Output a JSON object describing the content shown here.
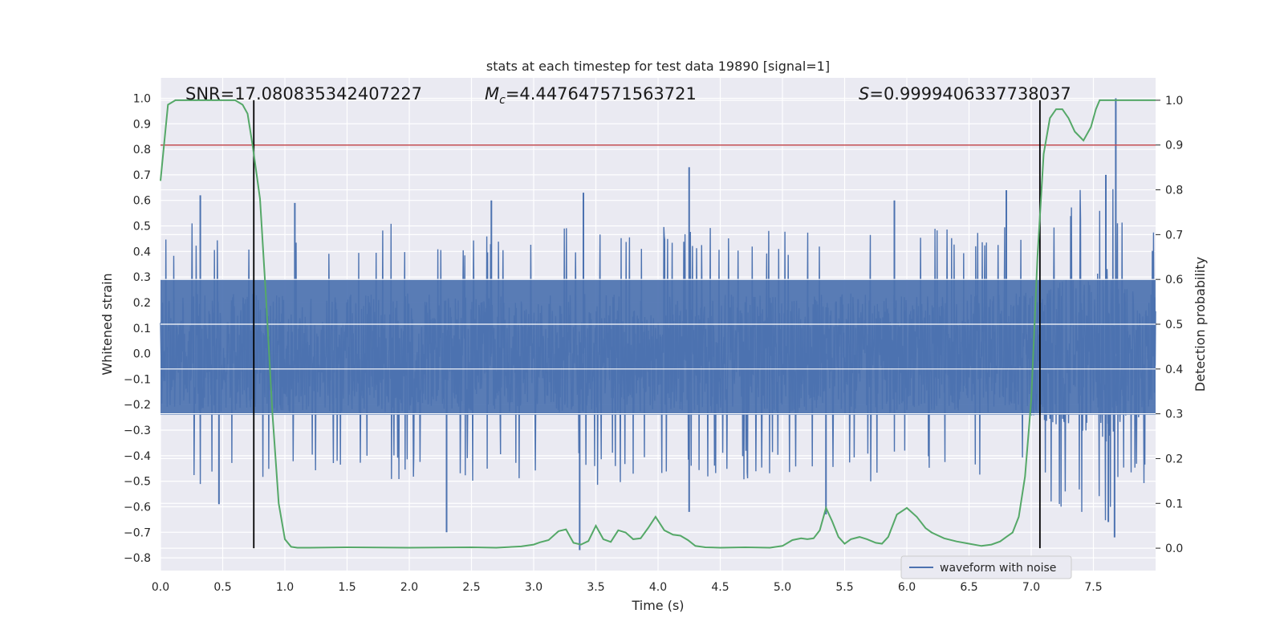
{
  "chart_data": {
    "type": "line",
    "title": "stats at each timestep for test data 19890 [signal=1]",
    "xlabel": "Time (s)",
    "ylabel_left": "Whitened strain",
    "ylabel_right": "Detection probability",
    "xlim": [
      0.0,
      8.0
    ],
    "ylim_left": [
      -0.85,
      1.08
    ],
    "ylim_right": [
      -0.05,
      1.05
    ],
    "x_ticks": [
      0.0,
      0.5,
      1.0,
      1.5,
      2.0,
      2.5,
      3.0,
      3.5,
      4.0,
      4.5,
      5.0,
      5.5,
      6.0,
      6.5,
      7.0,
      7.5
    ],
    "x_tick_labels": [
      "0.0",
      "0.5",
      "1.0",
      "1.5",
      "2.0",
      "2.5",
      "3.0",
      "3.5",
      "4.0",
      "4.5",
      "5.0",
      "5.5",
      "6.0",
      "6.5",
      "7.0",
      "7.5"
    ],
    "y_ticks_left": [
      1.0,
      0.9,
      0.8,
      0.7,
      0.6,
      0.5,
      0.4,
      0.3,
      0.2,
      0.1,
      0.0,
      -0.1,
      -0.2,
      -0.3,
      -0.4,
      -0.5,
      -0.6,
      -0.7,
      -0.8
    ],
    "y_tick_labels_left": [
      "1.0",
      "0.9",
      "0.8",
      "0.7",
      "0.6",
      "0.5",
      "0.4",
      "0.3",
      "0.2",
      "0.1",
      "0.0",
      "−0.1",
      "−0.2",
      "−0.3",
      "−0.4",
      "−0.5",
      "−0.6",
      "−0.7",
      "−0.8"
    ],
    "y_ticks_right": [
      1.0,
      0.9,
      0.8,
      0.7,
      0.6,
      0.5,
      0.4,
      0.3,
      0.2,
      0.1,
      0.0
    ],
    "y_tick_labels_right": [
      "1.0",
      "0.9",
      "0.8",
      "0.7",
      "0.6",
      "0.5",
      "0.4",
      "0.3",
      "0.2",
      "0.1",
      "0.0"
    ],
    "grid": true,
    "legend": {
      "position": "lower-right",
      "entries": [
        "waveform with noise"
      ]
    },
    "annotations": {
      "snr": "SNR=17.080835342407227",
      "mc_symbol": "M",
      "mc_sub": "c",
      "mc_value": "=4.447647571563721",
      "s_symbol": "S",
      "s_value": "=0.9999406337738037"
    },
    "threshold_line": {
      "axis": "right",
      "y": 0.9,
      "color": "#c44e52"
    },
    "vertical_lines": {
      "x": [
        0.75,
        7.07
      ],
      "color": "#000000"
    },
    "series": [
      {
        "name": "waveform with noise",
        "axis": "left",
        "color": "#4c72b0",
        "description_envelope": {
          "x": [
            0.0,
            0.5,
            1.0,
            1.5,
            2.0,
            2.5,
            3.0,
            3.5,
            4.0,
            4.5,
            5.0,
            5.5,
            6.0,
            6.5,
            7.0,
            7.5,
            7.6,
            7.7,
            8.0
          ],
          "upper": [
            0.42,
            0.43,
            0.41,
            0.42,
            0.43,
            0.42,
            0.42,
            0.43,
            0.42,
            0.42,
            0.42,
            0.43,
            0.42,
            0.42,
            0.44,
            0.6,
            0.64,
            0.5,
            0.42
          ],
          "lower": [
            -0.42,
            -0.43,
            -0.42,
            -0.42,
            -0.43,
            -0.42,
            -0.42,
            -0.43,
            -0.42,
            -0.42,
            -0.42,
            -0.43,
            -0.42,
            -0.42,
            -0.44,
            -0.6,
            -0.64,
            -0.5,
            -0.42
          ]
        },
        "peaks": [
          {
            "x": 0.32,
            "y": 0.62
          },
          {
            "x": 1.08,
            "y": 0.59
          },
          {
            "x": 2.66,
            "y": 0.6
          },
          {
            "x": 3.4,
            "y": 0.63
          },
          {
            "x": 4.25,
            "y": 0.73
          },
          {
            "x": 5.9,
            "y": 0.6
          },
          {
            "x": 6.8,
            "y": 0.64
          },
          {
            "x": 7.68,
            "y": 1.0
          },
          {
            "x": 7.6,
            "y": 0.7
          },
          {
            "x": 2.3,
            "y": -0.7
          },
          {
            "x": 3.37,
            "y": -0.77
          },
          {
            "x": 4.25,
            "y": -0.62
          },
          {
            "x": 7.67,
            "y": -0.72
          },
          {
            "x": 7.62,
            "y": -0.66
          },
          {
            "x": 0.47,
            "y": -0.59
          },
          {
            "x": 5.35,
            "y": -0.63
          }
        ]
      },
      {
        "name": "",
        "axis": "right",
        "color": "#55a868",
        "x": [
          0.0,
          0.06,
          0.12,
          0.2,
          0.3,
          0.4,
          0.5,
          0.6,
          0.66,
          0.7,
          0.74,
          0.8,
          0.85,
          0.9,
          0.95,
          1.0,
          1.05,
          1.1,
          1.2,
          1.5,
          2.0,
          2.5,
          2.7,
          2.9,
          3.0,
          3.05,
          3.12,
          3.2,
          3.26,
          3.32,
          3.38,
          3.44,
          3.5,
          3.56,
          3.62,
          3.68,
          3.74,
          3.8,
          3.86,
          3.92,
          3.98,
          4.05,
          4.12,
          4.18,
          4.24,
          4.3,
          4.38,
          4.5,
          4.7,
          4.9,
          5.0,
          5.08,
          5.15,
          5.2,
          5.25,
          5.3,
          5.35,
          5.4,
          5.45,
          5.5,
          5.55,
          5.62,
          5.68,
          5.75,
          5.8,
          5.85,
          5.92,
          6.0,
          6.08,
          6.15,
          6.2,
          6.3,
          6.4,
          6.5,
          6.6,
          6.68,
          6.75,
          6.8,
          6.85,
          6.9,
          6.95,
          7.0,
          7.05,
          7.1,
          7.15,
          7.2,
          7.25,
          7.3,
          7.35,
          7.42,
          7.48,
          7.52,
          7.55,
          7.6,
          7.65,
          7.7,
          8.0
        ],
        "y": [
          0.82,
          0.99,
          1.0,
          1.0,
          1.0,
          1.0,
          1.0,
          1.0,
          0.99,
          0.97,
          0.9,
          0.78,
          0.55,
          0.3,
          0.1,
          0.02,
          0.003,
          0.001,
          0.001,
          0.002,
          0.001,
          0.002,
          0.001,
          0.004,
          0.008,
          0.013,
          0.018,
          0.038,
          0.042,
          0.012,
          0.008,
          0.016,
          0.05,
          0.02,
          0.014,
          0.04,
          0.035,
          0.02,
          0.022,
          0.045,
          0.07,
          0.04,
          0.03,
          0.028,
          0.018,
          0.005,
          0.002,
          0.001,
          0.002,
          0.001,
          0.005,
          0.018,
          0.022,
          0.02,
          0.022,
          0.04,
          0.09,
          0.06,
          0.025,
          0.01,
          0.02,
          0.025,
          0.02,
          0.012,
          0.01,
          0.025,
          0.075,
          0.09,
          0.07,
          0.045,
          0.035,
          0.022,
          0.015,
          0.01,
          0.005,
          0.008,
          0.015,
          0.025,
          0.035,
          0.07,
          0.16,
          0.33,
          0.65,
          0.88,
          0.96,
          0.98,
          0.98,
          0.96,
          0.93,
          0.91,
          0.94,
          0.98,
          1.0,
          1.0,
          1.0,
          1.0,
          1.0
        ]
      }
    ]
  }
}
